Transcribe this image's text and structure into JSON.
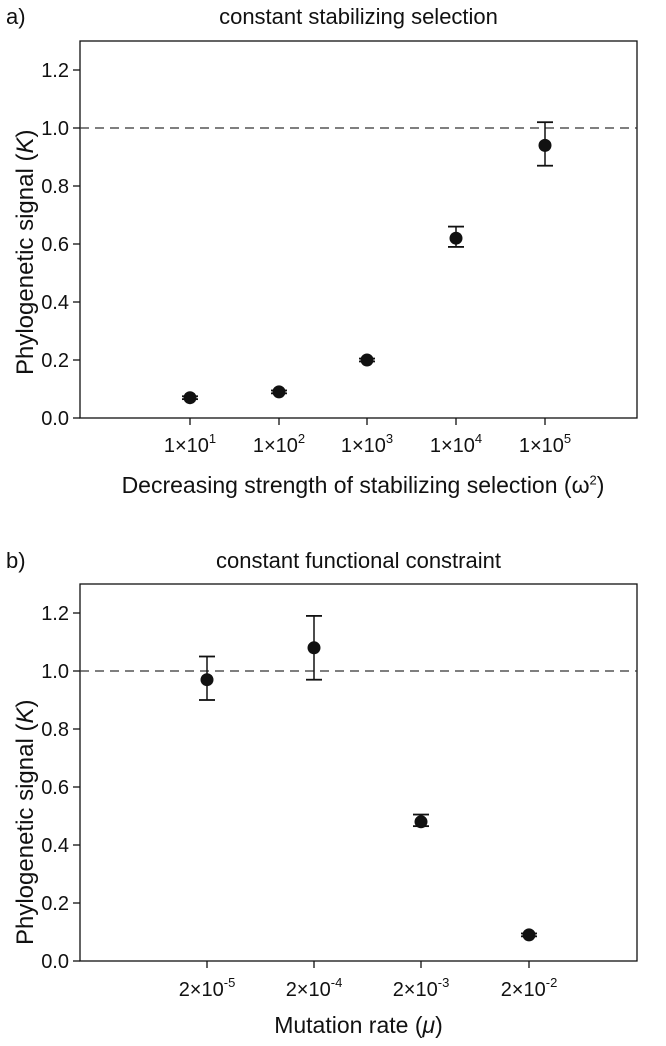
{
  "chart_data": [
    {
      "type": "scatter",
      "panel_label": "a)",
      "title": "constant stabilizing selection",
      "xlabel": "Decreasing strength of stabilizing selection (ω²)",
      "ylabel_main": "Phylogenetic signal (",
      "ylabel_italic": "K",
      "ylabel_end": ")",
      "xlabel_parts": {
        "main": "Decreasing strength of stabilizing selection (ω",
        "sup": "2",
        "end": ")"
      },
      "ylim": [
        0.0,
        1.3
      ],
      "yticks": [
        "0.0",
        "0.2",
        "0.4",
        "0.6",
        "0.8",
        "1.0",
        "1.2"
      ],
      "reference_line": 1.0,
      "categories": [
        {
          "base": "1×10",
          "exp": "1"
        },
        {
          "base": "1×10",
          "exp": "2"
        },
        {
          "base": "1×10",
          "exp": "3"
        },
        {
          "base": "1×10",
          "exp": "4"
        },
        {
          "base": "1×10",
          "exp": "5"
        }
      ],
      "values": [
        0.07,
        0.09,
        0.2,
        0.62,
        0.94
      ],
      "err_low": [
        0.065,
        0.085,
        0.195,
        0.59,
        0.87
      ],
      "err_high": [
        0.075,
        0.095,
        0.205,
        0.66,
        1.02
      ]
    },
    {
      "type": "scatter",
      "panel_label": "b)",
      "title": "constant functional constraint",
      "ylabel_main": "Phylogenetic signal (",
      "ylabel_italic": "K",
      "ylabel_end": ")",
      "xlabel_parts": {
        "main": "Mutation rate (",
        "italic": "μ",
        "end": ")"
      },
      "ylim": [
        0.0,
        1.3
      ],
      "yticks": [
        "0.0",
        "0.2",
        "0.4",
        "0.6",
        "0.8",
        "1.0",
        "1.2"
      ],
      "reference_line": 1.0,
      "categories": [
        {
          "base": "2×10",
          "exp": "-5"
        },
        {
          "base": "2×10",
          "exp": "-4"
        },
        {
          "base": "2×10",
          "exp": "-3"
        },
        {
          "base": "2×10",
          "exp": "-2"
        }
      ],
      "values": [
        0.97,
        1.08,
        0.48,
        0.09
      ],
      "err_low": [
        0.9,
        0.97,
        0.465,
        0.085
      ],
      "err_high": [
        1.05,
        1.19,
        0.505,
        0.095
      ]
    }
  ]
}
